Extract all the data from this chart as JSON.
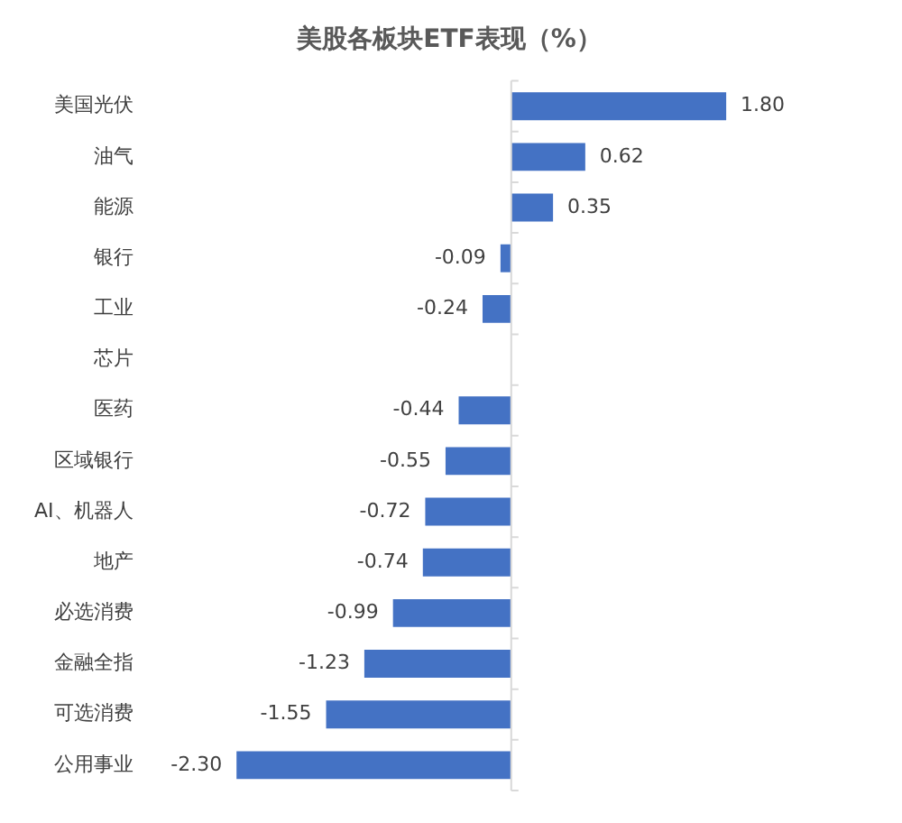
{
  "chart_data": {
    "type": "bar",
    "orientation": "horizontal",
    "title": "美股各板块ETF表现（%）",
    "categories": [
      "美国光伏",
      "油气",
      "能源",
      "银行",
      "工业",
      "芯片",
      "医药",
      "区域银行",
      "AI、机器人",
      "地产",
      "必选消费",
      "金融全指",
      "可选消费",
      "公用事业"
    ],
    "values": [
      1.8,
      0.62,
      0.35,
      -0.09,
      -0.24,
      null,
      -0.44,
      -0.55,
      -0.72,
      -0.74,
      -0.99,
      -1.23,
      -1.55,
      -2.3
    ],
    "value_labels": [
      "1.80",
      "0.62",
      "0.35",
      "-0.09",
      "-0.24",
      null,
      "-0.44",
      "-0.55",
      "-0.72",
      "-0.74",
      "-0.99",
      "-1.23",
      "-1.55",
      "-2.30"
    ],
    "color": "#4472c4",
    "tick_labels": "y",
    "grid": false,
    "legend": false
  }
}
